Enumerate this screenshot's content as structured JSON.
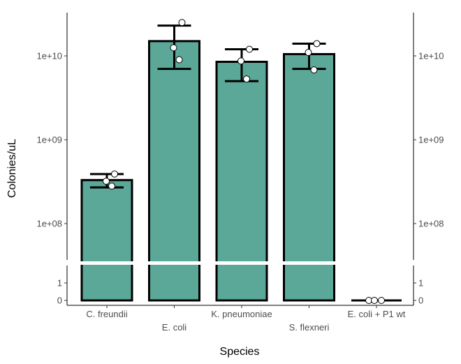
{
  "chart_data": {
    "type": "bar",
    "xlabel": "Species",
    "ylabel": "Colonies/uL",
    "y_scale": "log10 with axis break",
    "categories": [
      "C. freundii",
      "E. coli",
      "K. pneumoniae",
      "S. flexneri",
      "E. coli + P1 wt"
    ],
    "values": [
      330000000,
      15000000000,
      8500000000,
      10500000000,
      0
    ],
    "error_low": [
      270000000,
      7000000000,
      5000000000,
      7000000000,
      0
    ],
    "error_high": [
      390000000,
      23000000000,
      12000000000,
      14000000000,
      0
    ],
    "points": [
      [
        390000000,
        320000000,
        280000000
      ],
      [
        25000000000,
        12500000000,
        9000000000
      ],
      [
        12000000000,
        8700000000,
        5300000000
      ],
      [
        14000000000,
        11000000000,
        6800000000
      ],
      [
        0,
        0,
        0
      ]
    ],
    "upper_ticks": [
      {
        "value": 100000000,
        "label": "1e+08"
      },
      {
        "value": 1000000000,
        "label": "1e+09"
      },
      {
        "value": 10000000000,
        "label": "1e+10"
      }
    ],
    "lower_ticks": [
      {
        "value": 0,
        "label": "0"
      },
      {
        "value": 1,
        "label": "1"
      }
    ],
    "bar_color": "#5ba898",
    "edge_color": "#000000",
    "point_fill": "#ffffff",
    "grid": false,
    "legend": "none",
    "secondary_y_axis": "mirrored on right"
  }
}
